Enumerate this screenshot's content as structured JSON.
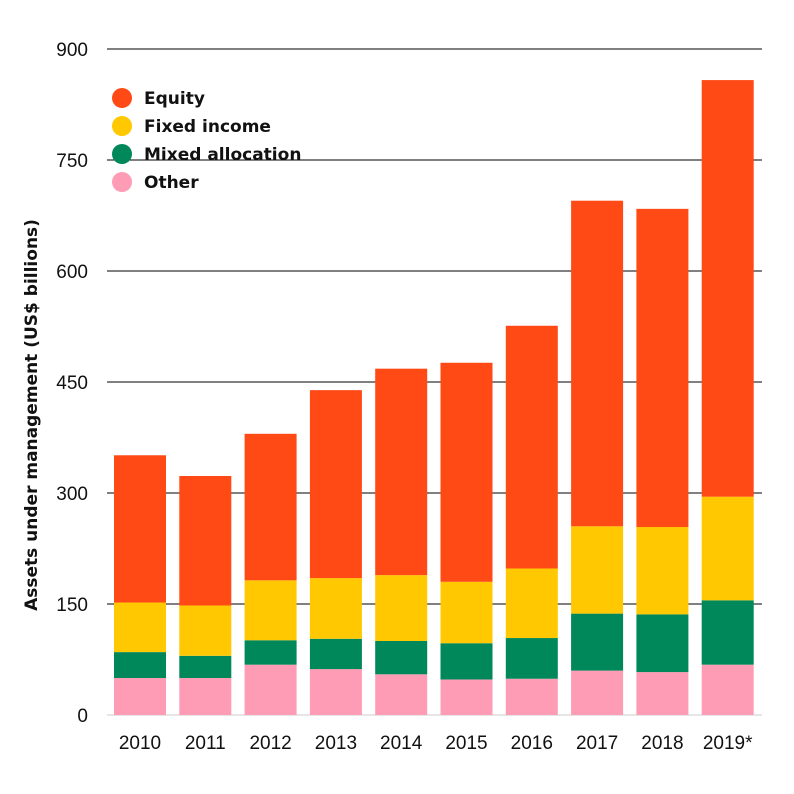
{
  "chart_data": {
    "type": "bar",
    "stacked": true,
    "title": "",
    "xlabel": "",
    "ylabel": "Assets under management (US$ billions)",
    "ylim": [
      0,
      900
    ],
    "yticks": [
      "0",
      "150",
      "300",
      "450",
      "600",
      "750",
      "900"
    ],
    "grid": true,
    "legend_position": "top-left",
    "categories": [
      "2010",
      "2011",
      "2012",
      "2013",
      "2014",
      "2015",
      "2016",
      "2017",
      "2018",
      "2019*"
    ],
    "series": [
      {
        "name": "Other",
        "color": "#FF9CB5",
        "values": [
          50,
          50,
          68,
          62,
          55,
          48,
          49,
          60,
          58,
          68
        ]
      },
      {
        "name": "Mixed allocation",
        "color": "#00875A",
        "values": [
          35,
          30,
          33,
          41,
          45,
          49,
          55,
          77,
          78,
          87
        ]
      },
      {
        "name": "Fixed income",
        "color": "#FFC800",
        "values": [
          67,
          68,
          81,
          82,
          89,
          83,
          94,
          118,
          118,
          140
        ]
      },
      {
        "name": "Equity",
        "color": "#FF4A15",
        "values": [
          199,
          175,
          198,
          254,
          279,
          296,
          328,
          440,
          430,
          563
        ]
      }
    ],
    "legend_order": [
      "Equity",
      "Fixed income",
      "Mixed allocation",
      "Other"
    ]
  }
}
